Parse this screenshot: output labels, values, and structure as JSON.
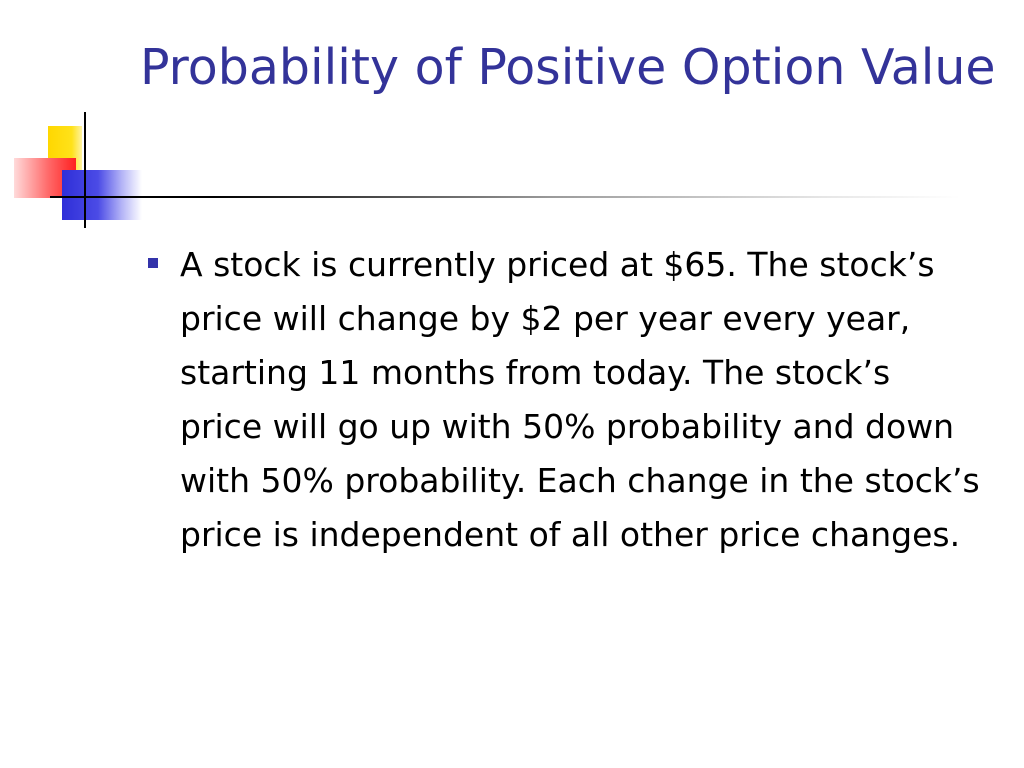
{
  "slide": {
    "title": "Probability of Positive Option Value",
    "bullets": [
      {
        "text": "A stock is currently priced at $65. The stock’s price will change by $2 per year every year, starting 11 months from today. The stock’s price will go up with 50% probability and down with 50% probability. Each change in the stock’s price is independent of all other price changes."
      }
    ]
  },
  "colors": {
    "title": "#333399",
    "bullet": "#3333aa",
    "text": "#000000",
    "ornament_yellow": "#ffd700",
    "ornament_red": "#ff2020",
    "ornament_blue": "#2f2fd8"
  }
}
